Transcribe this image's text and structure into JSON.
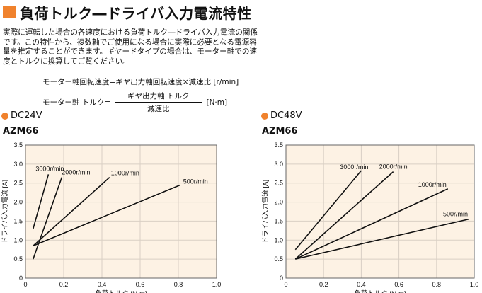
{
  "title": "負荷トルク―ドライバ入力電流特性",
  "accent_color": "#f0822d",
  "intro_text": "実際に運転した場合の各速度における負荷トルク―ドライバ入力電流の関係です。この特性から、複数軸でご使用になる場合に実際に必要となる電源容量を推定することができます。ギヤードタイプの場合は、モーター軸での速度とトルクに換算してご覧ください。",
  "formula1": "モーター軸回転速度=ギヤ出力軸回転速度×減速比 [r/min]",
  "formula2": {
    "lhs": "モーター軸 トルク=",
    "numerator": "ギヤ出力軸 トルク",
    "denominator": "減速比",
    "unit": "[N·m]"
  },
  "chart_data": [
    {
      "type": "line",
      "voltage": "DC24V",
      "model": "AZM66",
      "xlabel": "負荷トルク [N·m]",
      "ylabel": "ドライバ入力電流 [A]",
      "xlim": [
        0,
        1.0
      ],
      "ylim": [
        0,
        3.5
      ],
      "xticks": [
        "0",
        "0.2",
        "0.4",
        "0.6",
        "0.8",
        "1.0"
      ],
      "yticks": [
        "0",
        "0.5",
        "1.0",
        "1.5",
        "2.0",
        "2.5",
        "3.0",
        "3.5"
      ],
      "grid": true,
      "series": [
        {
          "name": "3000r/min",
          "x": [
            0.04,
            0.12
          ],
          "y": [
            1.3,
            2.73
          ]
        },
        {
          "name": "2000r/min",
          "x": [
            0.04,
            0.19
          ],
          "y": [
            0.5,
            2.65
          ]
        },
        {
          "name": "1000r/min",
          "x": [
            0.04,
            0.44
          ],
          "y": [
            0.85,
            2.65
          ]
        },
        {
          "name": "500r/min",
          "x": [
            0.04,
            0.81
          ],
          "y": [
            0.85,
            2.45
          ]
        }
      ]
    },
    {
      "type": "line",
      "voltage": "DC48V",
      "model": "AZM66",
      "xlabel": "負荷トルク [N·m]",
      "ylabel": "ドライバ入力電流 [A]",
      "xlim": [
        0,
        1.0
      ],
      "ylim": [
        0,
        3.5
      ],
      "xticks": [
        "0",
        "0.2",
        "0.4",
        "0.6",
        "0.8",
        "1.0"
      ],
      "yticks": [
        "0",
        "0.5",
        "1.0",
        "1.5",
        "2.0",
        "2.5",
        "3.0",
        "3.5"
      ],
      "grid": true,
      "series": [
        {
          "name": "3000r/min",
          "x": [
            0.05,
            0.4
          ],
          "y": [
            0.75,
            2.83
          ]
        },
        {
          "name": "2000r/min",
          "x": [
            0.05,
            0.57
          ],
          "y": [
            0.5,
            2.8
          ]
        },
        {
          "name": "1000r/min",
          "x": [
            0.05,
            0.86
          ],
          "y": [
            0.5,
            2.35
          ]
        },
        {
          "name": "500r/min",
          "x": [
            0.05,
            0.97
          ],
          "y": [
            0.5,
            1.55
          ]
        }
      ]
    }
  ]
}
